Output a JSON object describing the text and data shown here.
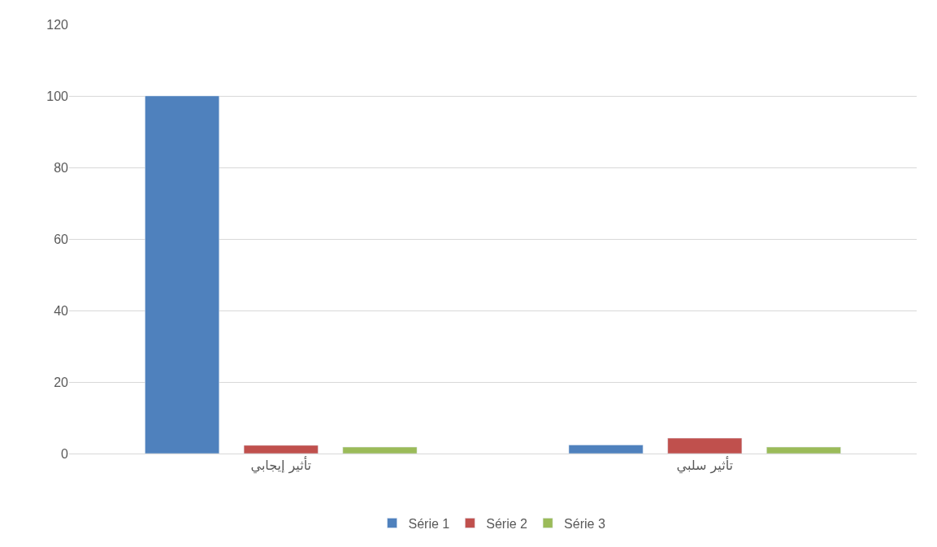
{
  "chart_data": {
    "type": "bar",
    "categories": [
      "تأثير إيجابي",
      "تأثير سلبي"
    ],
    "series": [
      {
        "name": "Série 1",
        "color": "#4f81bd",
        "values": [
          100,
          2.4
        ]
      },
      {
        "name": "Série 2",
        "color": "#c0504d",
        "values": [
          2.3,
          4.3
        ]
      },
      {
        "name": "Série 3",
        "color": "#9bbb59",
        "values": [
          1.8,
          1.8
        ]
      }
    ],
    "ylim": [
      0,
      120
    ],
    "yticks": [
      0,
      20,
      40,
      60,
      80,
      100,
      120
    ],
    "grid": "y",
    "legend": "bottom"
  }
}
